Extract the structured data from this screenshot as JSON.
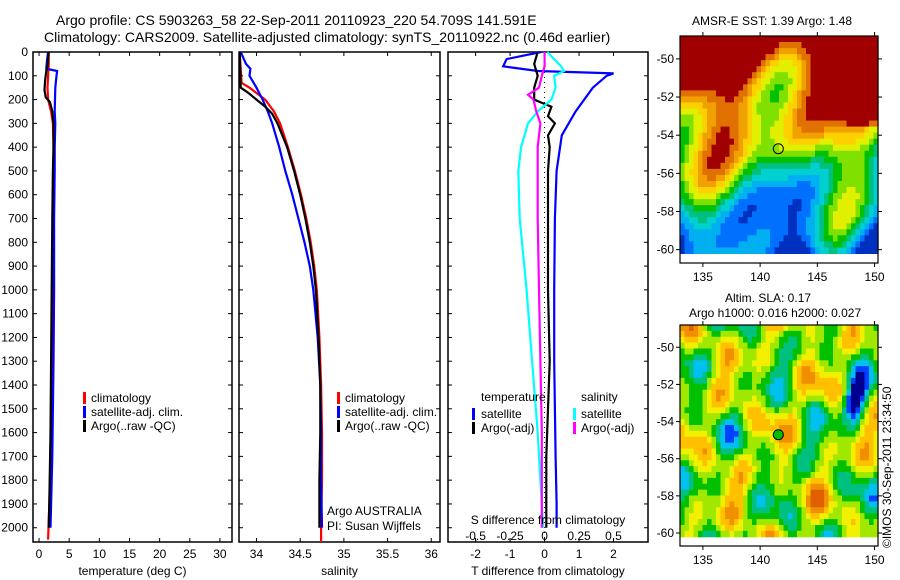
{
  "header": {
    "line1": "Argo profile: CS 5903263_58 22-Sep-2011 20110923_220 54.709S 141.591E",
    "line2": "Climatology: CARS2009. Satellite-adjusted climatology: synTS_20110922.nc (0.46d earlier)"
  },
  "colors": {
    "climatology": "#ff0000",
    "satellite": "#0000ff",
    "argo": "#000000",
    "sal_satellite": "#00ffff",
    "sal_argo": "#ff00ff"
  },
  "chart_data": [
    {
      "id": "temperature",
      "type": "line",
      "xlabel": "temperature (deg C)",
      "ylabel": "",
      "xlim": [
        -1,
        32
      ],
      "ylim": [
        2060,
        0
      ],
      "xticks": [
        0,
        5,
        10,
        15,
        20,
        25,
        30
      ],
      "yticks": [
        0,
        100,
        200,
        300,
        400,
        500,
        600,
        700,
        800,
        900,
        1000,
        1100,
        1200,
        1300,
        1400,
        1500,
        1600,
        1700,
        1800,
        1900,
        2000
      ],
      "legend": [
        "climatology",
        "satellite-adj. clim.",
        "Argo(..raw -QC)"
      ],
      "legend_position": "center-right",
      "series": [
        {
          "name": "climatology",
          "color_key": "climatology",
          "depth": [
            0,
            50,
            100,
            150,
            200,
            250,
            300,
            400,
            500,
            700,
            1000,
            1300,
            1500,
            1700,
            1900,
            2050
          ],
          "values": [
            1.6,
            1.6,
            1.5,
            1.4,
            1.5,
            2.0,
            2.3,
            2.4,
            2.4,
            2.3,
            2.2,
            2.1,
            2.0,
            1.9,
            1.7,
            1.5
          ]
        },
        {
          "name": "satellite-adj. clim.",
          "color_key": "satellite",
          "depth": [
            0,
            40,
            70,
            80,
            100,
            150,
            250,
            300,
            400,
            500,
            700,
            1000,
            1300,
            1500,
            1700,
            1900,
            2000
          ],
          "values": [
            1.5,
            1.3,
            1.2,
            3.0,
            2.9,
            2.7,
            2.6,
            2.7,
            2.6,
            2.6,
            2.5,
            2.5,
            2.4,
            2.3,
            2.2,
            2.0,
            1.9
          ]
        },
        {
          "name": "Argo(..raw -QC)",
          "color_key": "argo",
          "depth": [
            0,
            30,
            60,
            80,
            120,
            160,
            190,
            210,
            250,
            300,
            400,
            500,
            700,
            1000,
            1300,
            1600,
            1900,
            2000
          ],
          "values": [
            1.6,
            1.5,
            1.4,
            1.2,
            1.0,
            0.9,
            1.1,
            1.8,
            2.2,
            2.4,
            2.4,
            2.3,
            2.2,
            2.1,
            2.0,
            1.9,
            1.7,
            1.6
          ]
        }
      ]
    },
    {
      "id": "salinity",
      "type": "line",
      "xlabel": "salinity",
      "ylabel": "",
      "xlim": [
        33.8,
        36.1
      ],
      "ylim": [
        2060,
        0
      ],
      "xticks": [
        34,
        34.5,
        35,
        35.5,
        36
      ],
      "xtick_labels": [
        "34",
        "34.5",
        "35",
        "35.5",
        "36"
      ],
      "legend": [
        "climatology",
        "satellite-adj. clim.",
        "Argo(..raw -QC)"
      ],
      "legend_position": "center-right",
      "annotation": [
        "Argo AUSTRALIA",
        "PI: Susan Wijffels"
      ],
      "series": [
        {
          "name": "climatology",
          "color_key": "climatology",
          "depth": [
            0,
            20,
            130,
            150,
            200,
            250,
            300,
            400,
            500,
            600,
            700,
            800,
            900,
            1000,
            1200,
            1400,
            1600,
            1800,
            2000,
            2060
          ],
          "values": [
            33.81,
            33.81,
            33.83,
            33.92,
            34.1,
            34.2,
            34.27,
            34.36,
            34.44,
            34.51,
            34.57,
            34.62,
            34.66,
            34.69,
            34.72,
            34.74,
            34.75,
            34.75,
            34.74,
            34.74
          ]
        },
        {
          "name": "satellite-adj. clim.",
          "color_key": "satellite",
          "depth": [
            0,
            50,
            70,
            100,
            150,
            200,
            250,
            300,
            400,
            500,
            600,
            700,
            800,
            900,
            1000,
            1200,
            1400,
            1600,
            1800,
            2000
          ],
          "values": [
            33.82,
            33.88,
            33.93,
            33.92,
            34.0,
            34.07,
            34.13,
            34.18,
            34.26,
            34.33,
            34.41,
            34.48,
            34.55,
            34.61,
            34.65,
            34.7,
            34.73,
            34.74,
            34.74,
            34.75
          ]
        },
        {
          "name": "Argo(..raw -QC)",
          "color_key": "argo",
          "depth": [
            0,
            20,
            150,
            170,
            200,
            230,
            260,
            300,
            400,
            500,
            600,
            700,
            800,
            900,
            1000,
            1200,
            1400,
            1600,
            1800,
            2000
          ],
          "values": [
            33.81,
            33.81,
            33.82,
            33.9,
            34.0,
            34.1,
            34.18,
            34.24,
            34.35,
            34.43,
            34.5,
            34.56,
            34.61,
            34.65,
            34.68,
            34.71,
            34.73,
            34.73,
            34.72,
            34.72
          ]
        }
      ]
    },
    {
      "id": "difference",
      "type": "line",
      "xlabel": "T difference from climatology",
      "xlabel_top": "S difference from climatology",
      "xlim": [
        -2.8,
        3.0
      ],
      "ylim": [
        2060,
        0
      ],
      "xticks": [
        -2,
        -1,
        0,
        1,
        2
      ],
      "xticks_S": [
        -0.5,
        -0.25,
        0,
        0.25,
        0.5
      ],
      "xtick_labels_S": [
        "-0.5",
        "-0.25",
        "0",
        "0.25",
        "0.5"
      ],
      "legend_temperature": {
        "title": "temperature",
        "items": [
          "satellite",
          "Argo(-adj)"
        ]
      },
      "legend_salinity": {
        "title": "salinity",
        "items": [
          "satellite",
          "Argo(-adj)"
        ]
      },
      "legend_position": "bottom-center",
      "series": [
        {
          "name": "temperature satellite",
          "color_key": "satellite",
          "units": "T",
          "depth": [
            0,
            30,
            60,
            80,
            90,
            100,
            150,
            250,
            350,
            500,
            700,
            1000,
            1300,
            1500,
            1700,
            1900,
            2000
          ],
          "values": [
            -0.1,
            -1.1,
            -1.2,
            -0.2,
            2.0,
            1.8,
            1.4,
            0.9,
            0.5,
            0.35,
            0.3,
            0.28,
            0.28,
            0.3,
            0.32,
            0.35,
            0.35
          ]
        },
        {
          "name": "temperature Argo(-adj)",
          "color_key": "argo",
          "units": "T",
          "depth": [
            0,
            50,
            100,
            150,
            200,
            230,
            270,
            300,
            350,
            400,
            500,
            700,
            1000,
            1300,
            1500,
            1700,
            2000
          ],
          "values": [
            -0.2,
            -0.3,
            -0.2,
            -0.3,
            -0.3,
            0.2,
            0.1,
            0.3,
            0.1,
            0.15,
            0.1,
            0.1,
            0.1,
            0.15,
            0.1,
            0.05,
            0.05
          ]
        },
        {
          "name": "salinity satellite",
          "color_key": "sal_satellite",
          "units": "S",
          "depth": [
            0,
            60,
            80,
            100,
            150,
            200,
            250,
            300,
            400,
            500,
            700,
            1000,
            1300,
            1600,
            1900,
            2000
          ],
          "values": [
            0.02,
            0.12,
            0.14,
            0.07,
            0.08,
            0.05,
            -0.05,
            -0.12,
            -0.17,
            -0.19,
            -0.18,
            -0.13,
            -0.09,
            -0.05,
            -0.02,
            -0.01
          ]
        },
        {
          "name": "salinity Argo(-adj)",
          "color_key": "sal_argo",
          "units": "S",
          "depth": [
            0,
            60,
            100,
            150,
            180,
            200,
            250,
            300,
            400,
            500,
            700,
            1000,
            1300,
            1600,
            1900,
            2000
          ],
          "values": [
            0.0,
            0.0,
            -0.02,
            -0.04,
            -0.12,
            -0.08,
            -0.06,
            -0.03,
            -0.05,
            -0.05,
            -0.05,
            -0.04,
            -0.03,
            -0.02,
            -0.02,
            -0.02
          ]
        }
      ]
    },
    {
      "id": "sst-map",
      "type": "heatmap",
      "title": "AMSR-E SST: 1.39 Argo: 1.48",
      "xlim": [
        133,
        150.3
      ],
      "ylim": [
        -60.7,
        -48.8
      ],
      "xticks": [
        135,
        140,
        145,
        150
      ],
      "yticks": [
        -50,
        -52,
        -54,
        -56,
        -58,
        -60
      ],
      "marker": {
        "lon": 141.591,
        "lat": -54.709,
        "style": "open-circle"
      },
      "colorscale": [
        "#0030c0",
        "#0070ff",
        "#00b0f0",
        "#00d0d0",
        "#00c080",
        "#00c000",
        "#80e000",
        "#e0f000",
        "#ffd000",
        "#f0a000",
        "#e07000",
        "#a00000"
      ]
    },
    {
      "id": "sla-map",
      "type": "heatmap",
      "title": "Altim. SLA: 0.17",
      "subtitle": "Argo h1000: 0.016 h2000: 0.027",
      "xlim": [
        133,
        150.3
      ],
      "ylim": [
        -60.7,
        -48.8
      ],
      "xticks": [
        135,
        140,
        145,
        150
      ],
      "yticks": [
        -50,
        -52,
        -54,
        -56,
        -58,
        -60
      ],
      "marker": {
        "lon": 141.591,
        "lat": -54.709,
        "style": "filled-circle"
      },
      "colorscale": [
        "#000090",
        "#0040ff",
        "#00c0f0",
        "#00c080",
        "#00c000",
        "#a0e800",
        "#f0f000",
        "#ffc000",
        "#f09000",
        "#e06000"
      ]
    }
  ],
  "credit": "©IMOS 30-Sep-2011 23:34:50"
}
